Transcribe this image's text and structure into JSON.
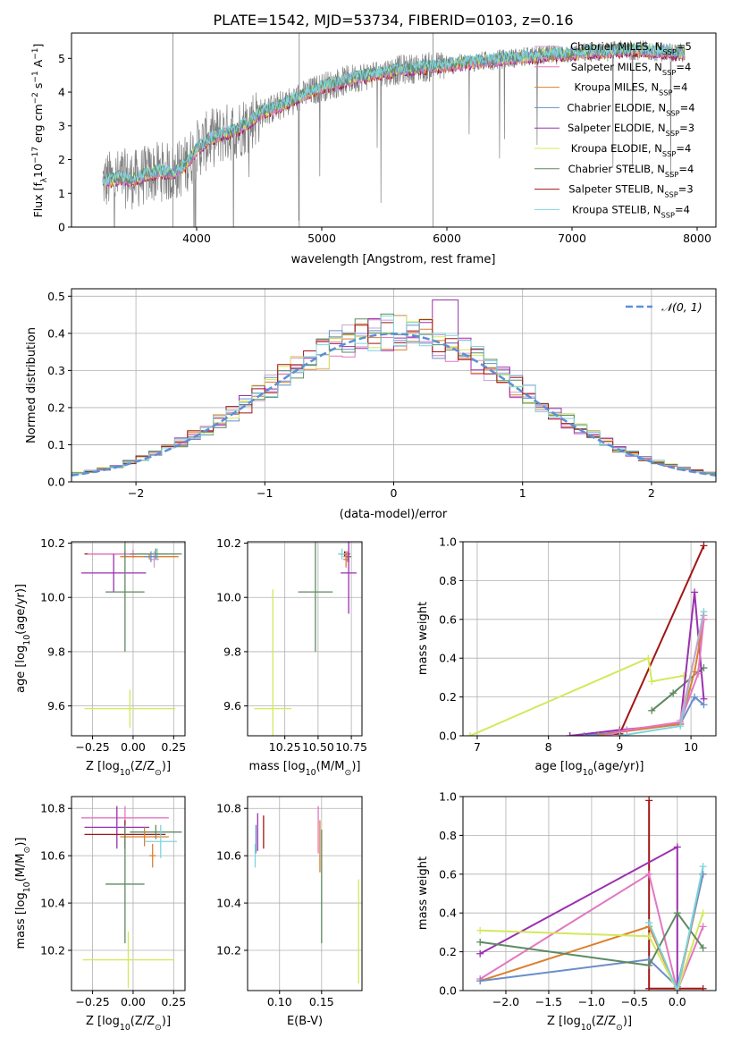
{
  "figure_title": "PLATE=1542, MJD=53734, FIBERID=0103, z=0.16",
  "colors": {
    "observed": "#808080",
    "Chabrier MILES": "#c8a2c8",
    "Salpeter MILES": "#e377c2",
    "Kroupa MILES": "#dd7f2e",
    "Chabrier ELODIE": "#6a8ec9",
    "Salpeter ELODIE": "#9b30b0",
    "Kroupa ELODIE": "#d4e85a",
    "Chabrier STELIB": "#5e8a62",
    "Salpeter STELIB": "#a31515",
    "Kroupa STELIB": "#7fd4dc",
    "normal": "#5b8fd6"
  },
  "chart_data": [
    {
      "id": "spectrum",
      "type": "line",
      "title": "PLATE=1542, MJD=53734, FIBERID=0103, z=0.16",
      "xlabel": "wavelength [Angstrom, rest frame]",
      "ylabel": "Flux [f_λ 10^-17 erg cm^-2 s^-1 A^-1]",
      "xlim": [
        3000,
        8150
      ],
      "ylim": [
        0,
        5.75
      ],
      "xticks": [
        "4000",
        "5000",
        "6000",
        "7000",
        "8000"
      ],
      "yticks": [
        "0",
        "1",
        "2",
        "3",
        "4",
        "5"
      ],
      "legend_position": "right",
      "grid": false,
      "continuum": {
        "x": [
          3250,
          3400,
          3500,
          3600,
          3700,
          3800,
          3900,
          4000,
          4100,
          4200,
          4300,
          4400,
          4500,
          4700,
          5000,
          5300,
          5600,
          6000,
          6500,
          7000,
          7500,
          7900
        ],
        "y": [
          1.35,
          1.45,
          1.4,
          1.55,
          1.65,
          1.6,
          1.8,
          2.3,
          2.6,
          2.75,
          2.85,
          3.05,
          3.35,
          3.65,
          4.15,
          4.45,
          4.65,
          4.8,
          5.0,
          5.15,
          5.25,
          5.15
        ]
      },
      "series": [
        {
          "name": "Chabrier MILES",
          "nssp": "5"
        },
        {
          "name": "Salpeter MILES",
          "nssp": "4"
        },
        {
          "name": "Kroupa MILES",
          "nssp": "4"
        },
        {
          "name": "Chabrier ELODIE",
          "nssp": "4"
        },
        {
          "name": "Salpeter ELODIE",
          "nssp": "3"
        },
        {
          "name": "Kroupa ELODIE",
          "nssp": "4"
        },
        {
          "name": "Chabrier STELIB",
          "nssp": "4"
        },
        {
          "name": "Salpeter STELIB",
          "nssp": "3"
        },
        {
          "name": "Kroupa STELIB",
          "nssp": "4"
        }
      ]
    },
    {
      "id": "residuals",
      "type": "line",
      "xlabel": "(data-model)/error",
      "ylabel": "Normed distribution",
      "xlim": [
        -2.5,
        2.5
      ],
      "ylim": [
        0,
        0.52
      ],
      "xticks": [
        -2,
        -1,
        0,
        1,
        2
      ],
      "yticks": [
        0.0,
        0.1,
        0.2,
        0.3,
        0.4,
        0.5
      ],
      "grid": true,
      "legend": "N(0,1)",
      "legend_position": "top-right",
      "bin_width": 0.1,
      "normal_curve": {
        "mean": 0,
        "sigma": 1
      }
    },
    {
      "id": "age_vs_Z",
      "type": "scatter",
      "xlabel": "Z [log10(Z/Z☉)]",
      "ylabel": "age [log10(age/yr)]",
      "xlim": [
        -0.38,
        0.32
      ],
      "ylim": [
        9.49,
        10.205
      ],
      "xticks": [
        "−0.25",
        "0.00",
        "0.25"
      ],
      "xtick_values": [
        -0.25,
        0,
        0.25
      ],
      "yticks": [
        9.6,
        9.8,
        10.0,
        10.2
      ],
      "grid": true,
      "points": [
        {
          "series": "Salpeter STELIB",
          "x": -0.05,
          "y": 10.16,
          "xerr": 0.25,
          "yerr": 0.01
        },
        {
          "series": "Salpeter MILES",
          "x": 0.0,
          "y": 10.16,
          "xerr": 0.28,
          "yerr": 0.015
        },
        {
          "series": "Kroupa STELIB",
          "x": 0.15,
          "y": 10.16,
          "xerr": 0.12,
          "yerr": 0.02
        },
        {
          "series": "Kroupa MILES",
          "x": 0.1,
          "y": 10.15,
          "xerr": 0.18,
          "yerr": 0.01
        },
        {
          "series": "Chabrier STELIB",
          "x": 0.14,
          "y": 10.16,
          "xerr": 0.16,
          "yerr": 0.02
        },
        {
          "series": "Chabrier MILES",
          "x": 0.13,
          "y": 10.14,
          "xerr": 0.03,
          "yerr": 0.03
        },
        {
          "series": "Chabrier ELODIE",
          "x": 0.11,
          "y": 10.15,
          "xerr": 0.04,
          "yerr": 0.02
        },
        {
          "series": "Salpeter ELODIE",
          "x": -0.12,
          "y": 10.09,
          "xerr": 0.2,
          "yerr": 0.07
        },
        {
          "series": "Chabrier STELIB",
          "x": -0.05,
          "y": 10.02,
          "xerr": 0.12,
          "yerr": 0.22
        },
        {
          "series": "Kroupa ELODIE",
          "x": -0.02,
          "y": 9.59,
          "xerr": 0.28,
          "yerr": 0.07
        }
      ]
    },
    {
      "id": "age_vs_mass",
      "type": "scatter",
      "xlabel": "mass [log10(M/M☉)]",
      "ylabel": "",
      "xlim": [
        9.97,
        10.83
      ],
      "ylim": [
        9.49,
        10.205
      ],
      "xticks": [
        "10.25",
        "10.50",
        "10.75"
      ],
      "xtick_values": [
        10.25,
        10.5,
        10.75
      ],
      "yticks": [
        9.6,
        9.8,
        10.0,
        10.2
      ],
      "grid": true,
      "points": [
        {
          "series": "Salpeter STELIB",
          "x": 10.7,
          "y": 10.16,
          "xerr": 0.04,
          "yerr": 0.01
        },
        {
          "series": "Salpeter MILES",
          "x": 10.72,
          "y": 10.15,
          "xerr": 0.03,
          "yerr": 0.02
        },
        {
          "series": "Kroupa STELIB",
          "x": 10.68,
          "y": 10.16,
          "xerr": 0.03,
          "yerr": 0.02
        },
        {
          "series": "Kroupa MILES",
          "x": 10.71,
          "y": 10.14,
          "xerr": 0.02,
          "yerr": 0.03
        },
        {
          "series": "Chabrier STELIB",
          "x": 10.73,
          "y": 10.15,
          "xerr": 0.02,
          "yerr": 0.02
        },
        {
          "series": "Salpeter ELODIE",
          "x": 10.73,
          "y": 10.09,
          "xerr": 0.06,
          "yerr": 0.15
        },
        {
          "series": "Chabrier STELIB",
          "x": 10.48,
          "y": 10.02,
          "xerr": 0.13,
          "yerr": 0.22
        },
        {
          "series": "Kroupa ELODIE",
          "x": 10.16,
          "y": 9.59,
          "xerr": 0.14,
          "yerr": 0.44
        }
      ]
    },
    {
      "id": "weight_vs_age",
      "type": "line",
      "xlabel": "age [log10(age/yr)]",
      "ylabel": "mass weight",
      "xlim": [
        6.8,
        10.35
      ],
      "ylim": [
        0,
        1
      ],
      "xticks": [
        7,
        8,
        9,
        10
      ],
      "yticks": [
        0.0,
        0.2,
        0.4,
        0.6,
        0.8,
        1.0
      ],
      "grid": true,
      "series": [
        {
          "name": "Salpeter STELIB",
          "x": [
            8.3,
            9.0,
            10.18
          ],
          "y": [
            0.0,
            0.01,
            0.98
          ]
        },
        {
          "name": "Kroupa ELODIE",
          "x": [
            6.9,
            9.4,
            9.45,
            9.9
          ],
          "y": [
            0.0,
            0.4,
            0.28,
            0.31
          ]
        },
        {
          "name": "Chabrier STELIB",
          "x": [
            9.45,
            9.75,
            10.1,
            10.18
          ],
          "y": [
            0.13,
            0.22,
            0.33,
            0.35
          ]
        },
        {
          "name": "Salpeter ELODIE",
          "x": [
            8.3,
            9.0,
            9.85,
            10.05,
            10.18
          ],
          "y": [
            0.0,
            0.03,
            0.06,
            0.74,
            0.19
          ]
        },
        {
          "name": "Chabrier ELODIE",
          "x": [
            8.5,
            9.0,
            9.85,
            10.05,
            10.18
          ],
          "y": [
            0.0,
            0.02,
            0.06,
            0.2,
            0.16
          ]
        },
        {
          "name": "Kroupa MILES",
          "x": [
            8.7,
            9.0,
            9.85,
            10.05,
            10.18
          ],
          "y": [
            0.0,
            0.02,
            0.06,
            0.33,
            0.6
          ]
        },
        {
          "name": "Salpeter MILES",
          "x": [
            8.8,
            9.1,
            9.85,
            10.1,
            10.18
          ],
          "y": [
            0.0,
            0.03,
            0.07,
            0.32,
            0.6
          ]
        },
        {
          "name": "Kroupa STELIB",
          "x": [
            9.0,
            9.85,
            10.18
          ],
          "y": [
            0.0,
            0.05,
            0.64
          ]
        },
        {
          "name": "Chabrier MILES",
          "x": [
            9.85,
            10.18
          ],
          "y": [
            0.08,
            0.62
          ]
        }
      ]
    },
    {
      "id": "mass_vs_Z",
      "type": "scatter",
      "xlabel": "Z [log10(Z/Z☉)]",
      "ylabel": "mass [log10(M/M☉)]",
      "xlim": [
        -0.38,
        0.32
      ],
      "ylim": [
        10.03,
        10.85
      ],
      "xticks": [
        "−0.25",
        "0.00",
        "0.25"
      ],
      "xtick_values": [
        -0.25,
        0,
        0.25
      ],
      "yticks": [
        10.2,
        10.4,
        10.6,
        10.8
      ],
      "grid": true,
      "points": [
        {
          "series": "Salpeter MILES",
          "x": -0.05,
          "y": 10.76,
          "xerr": 0.27,
          "yerr": 0.05
        },
        {
          "series": "Salpeter ELODIE",
          "x": -0.1,
          "y": 10.72,
          "xerr": 0.2,
          "yerr": 0.09
        },
        {
          "series": "Salpeter STELIB",
          "x": -0.05,
          "y": 10.69,
          "xerr": 0.25,
          "yerr": 0.06
        },
        {
          "series": "Chabrier STELIB",
          "x": 0.14,
          "y": 10.7,
          "xerr": 0.16,
          "yerr": 0.03
        },
        {
          "series": "Kroupa MILES",
          "x": 0.07,
          "y": 10.68,
          "xerr": 0.15,
          "yerr": 0.04
        },
        {
          "series": "Kroupa STELIB",
          "x": 0.17,
          "y": 10.66,
          "xerr": 0.1,
          "yerr": 0.07
        },
        {
          "series": "Kroupa MILES",
          "x": 0.12,
          "y": 10.6,
          "xerr": 0.02,
          "yerr": 0.05
        },
        {
          "series": "Chabrier STELIB",
          "x": -0.05,
          "y": 10.48,
          "xerr": 0.12,
          "yerr": 0.25
        },
        {
          "series": "Kroupa ELODIE",
          "x": -0.03,
          "y": 10.16,
          "xerr": 0.28,
          "yerr": 0.12
        }
      ]
    },
    {
      "id": "mass_vs_ebv",
      "type": "scatter",
      "xlabel": "E(B-V)",
      "ylabel": "",
      "xlim": [
        0.062,
        0.198
      ],
      "ylim": [
        10.03,
        10.85
      ],
      "xticks": [
        "0.10",
        "0.15"
      ],
      "xtick_values": [
        0.1,
        0.15
      ],
      "yticks": [
        10.2,
        10.4,
        10.6,
        10.8
      ],
      "grid": true,
      "points": [
        {
          "series": "Salpeter ELODIE",
          "x": 0.074,
          "y": 10.7,
          "xerr": 0.0005,
          "yerr": 0.08
        },
        {
          "series": "Chabrier ELODIE",
          "x": 0.072,
          "y": 10.67,
          "xerr": 0.0005,
          "yerr": 0.06
        },
        {
          "series": "Kroupa STELIB",
          "x": 0.071,
          "y": 10.6,
          "xerr": 0.0005,
          "yerr": 0.05
        },
        {
          "series": "Salpeter STELIB",
          "x": 0.081,
          "y": 10.7,
          "xerr": 0.0005,
          "yerr": 0.07
        },
        {
          "series": "Salpeter MILES",
          "x": 0.146,
          "y": 10.71,
          "xerr": 0.0005,
          "yerr": 0.1
        },
        {
          "series": "Kroupa MILES",
          "x": 0.148,
          "y": 10.64,
          "xerr": 0.0005,
          "yerr": 0.11
        },
        {
          "series": "Chabrier STELIB",
          "x": 0.15,
          "y": 10.47,
          "xerr": 0.0005,
          "yerr": 0.24
        },
        {
          "series": "Kroupa ELODIE",
          "x": 0.194,
          "y": 10.28,
          "xerr": 0.0005,
          "yerr": 0.22
        }
      ]
    },
    {
      "id": "weight_vs_Z",
      "type": "line",
      "xlabel": "Z [log10(Z/Z☉)]",
      "ylabel": "mass weight",
      "xlim": [
        -2.5,
        0.45
      ],
      "ylim": [
        0,
        1
      ],
      "xticks": [
        "−2.0",
        "−1.5",
        "−1.0",
        "−0.5",
        "0.0"
      ],
      "xtick_values": [
        -2.0,
        -1.5,
        -1.0,
        -0.5,
        0.0
      ],
      "yticks": [
        0.0,
        0.2,
        0.4,
        0.6,
        0.8,
        1.0
      ],
      "grid": true,
      "series": [
        {
          "name": "Salpeter STELIB",
          "x": [
            -0.33,
            -0.33,
            0.0,
            0.3
          ],
          "y": [
            0.98,
            0.01,
            0.01,
            0.01
          ]
        },
        {
          "name": "Salpeter ELODIE",
          "x": [
            -2.3,
            0.0,
            0.0
          ],
          "y": [
            0.19,
            0.74,
            0.0
          ]
        },
        {
          "name": "Salpeter MILES",
          "x": [
            -2.3,
            -0.33,
            0.0,
            0.3
          ],
          "y": [
            0.06,
            0.6,
            0.0,
            0.33
          ]
        },
        {
          "name": "Kroupa MILES",
          "x": [
            -2.3,
            -0.33,
            0.0,
            0.3
          ],
          "y": [
            0.05,
            0.33,
            0.0,
            0.6
          ]
        },
        {
          "name": "Chabrier ELODIE",
          "x": [
            -2.3,
            -0.33,
            0.0,
            0.3
          ],
          "y": [
            0.05,
            0.16,
            0.02,
            0.6
          ]
        },
        {
          "name": "Kroupa ELODIE",
          "x": [
            -2.3,
            -0.33,
            0.0,
            0.3
          ],
          "y": [
            0.31,
            0.28,
            0.0,
            0.4
          ]
        },
        {
          "name": "Chabrier STELIB",
          "x": [
            -2.3,
            -0.33,
            0.0,
            0.3
          ],
          "y": [
            0.25,
            0.13,
            0.4,
            0.22
          ]
        },
        {
          "name": "Kroupa STELIB",
          "x": [
            -0.33,
            0.0,
            0.3
          ],
          "y": [
            0.35,
            0.0,
            0.64
          ]
        }
      ]
    }
  ]
}
